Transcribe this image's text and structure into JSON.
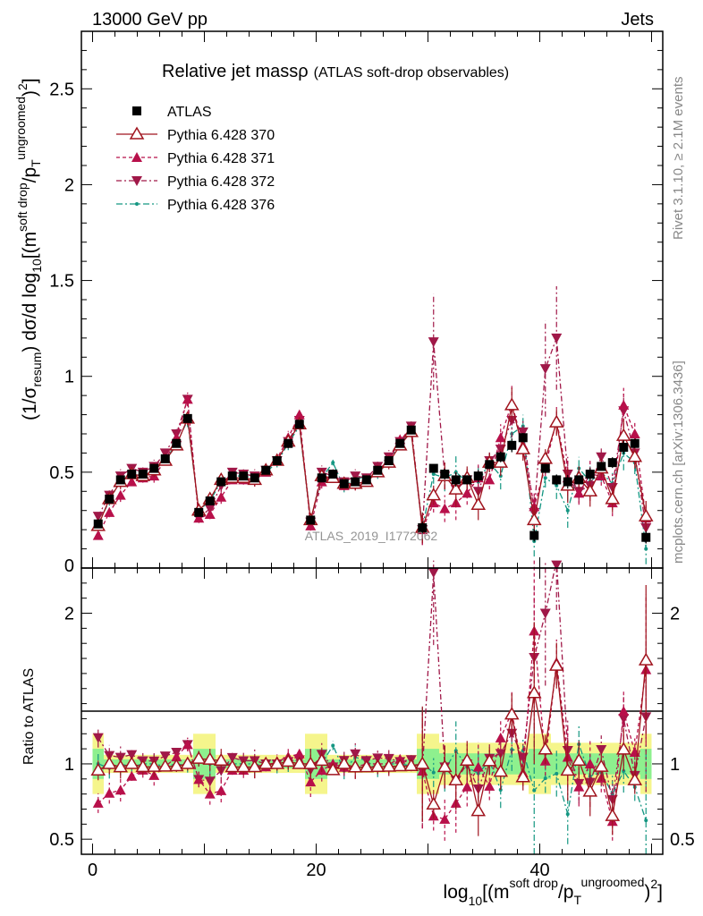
{
  "header": {
    "left": "13000 GeV pp",
    "right": "Jets"
  },
  "side_labels": {
    "rivet": "Rivet 3.1.10, ≥ 2.1M events",
    "mcplots": "mcplots.cern.ch [arXiv:1306.3436]"
  },
  "watermark": "ATLAS_2019_I1772062",
  "colors": {
    "atlas": "#000000",
    "p370": "#a0141e",
    "p371": "#b8104a",
    "p372": "#a01848",
    "p376": "#149682",
    "band_inner": "#8ef08e",
    "band_outer": "#f5f58c"
  },
  "chart_data": {
    "type": "scatter",
    "title": "Relative jet mass",
    "title_symbol": "ρ",
    "subtitle": "(ATLAS soft-drop observables)",
    "ylabel_main": "(1/σresum) dσ/d log10[(msoft drop/pTungroomed)2]",
    "ylabel_ratio": "Ratio to ATLAS",
    "xlabel": "log10[(msoft drop/pTungroomed)2]",
    "x": [
      0.5,
      1.5,
      2.5,
      3.5,
      4.5,
      5.5,
      6.5,
      7.5,
      8.5,
      9.5,
      10.5,
      11.5,
      12.5,
      13.5,
      14.5,
      15.5,
      16.5,
      17.5,
      18.5,
      19.5,
      20.5,
      21.5,
      22.5,
      23.5,
      24.5,
      25.5,
      26.5,
      27.5,
      28.5,
      29.5,
      30.5,
      31.5,
      32.5,
      33.5,
      34.5,
      35.5,
      36.5,
      37.5,
      38.5,
      39.5,
      40.5,
      41.5,
      42.5,
      43.5,
      44.5,
      45.5,
      46.5,
      47.5,
      48.5,
      49.5
    ],
    "xlim": [
      -1,
      51
    ],
    "ylim_main": [
      0,
      2.8
    ],
    "yticks_main": [
      "0.5",
      "1",
      "1.5",
      "2",
      "2.5"
    ],
    "ylim_ratio": [
      0.4,
      2.3
    ],
    "yticks_ratio": [
      "0.5",
      "1",
      "2"
    ],
    "xticks": [
      "0",
      "20",
      "40"
    ],
    "series": [
      {
        "name": "ATLAS",
        "marker": "square",
        "values": [
          0.23,
          0.36,
          0.46,
          0.49,
          0.49,
          0.52,
          0.57,
          0.65,
          0.78,
          0.29,
          0.35,
          0.45,
          0.48,
          0.48,
          0.47,
          0.51,
          0.56,
          0.65,
          0.75,
          0.25,
          0.47,
          0.49,
          0.44,
          0.45,
          0.46,
          0.51,
          0.56,
          0.65,
          0.72,
          0.21,
          0.52,
          0.49,
          0.46,
          0.46,
          0.48,
          0.54,
          0.58,
          0.64,
          0.68,
          0.17,
          0.52,
          0.46,
          0.45,
          0.46,
          0.49,
          0.53,
          0.55,
          0.63,
          0.65,
          0.16
        ]
      },
      {
        "name": "Pythia 6.428 370",
        "marker": "triangle-open",
        "values": [
          0.22,
          0.36,
          0.45,
          0.49,
          0.48,
          0.51,
          0.56,
          0.64,
          0.78,
          0.3,
          0.36,
          0.46,
          0.47,
          0.47,
          0.46,
          0.51,
          0.56,
          0.66,
          0.75,
          0.25,
          0.48,
          0.47,
          0.44,
          0.44,
          0.45,
          0.5,
          0.55,
          0.64,
          0.71,
          0.21,
          0.38,
          0.48,
          0.41,
          0.47,
          0.33,
          0.55,
          0.55,
          0.85,
          0.62,
          0.25,
          0.57,
          0.76,
          0.43,
          0.47,
          0.4,
          0.52,
          0.36,
          0.69,
          0.58,
          0.27
        ]
      },
      {
        "name": "Pythia 6.428 371",
        "marker": "triangle-up",
        "values": [
          0.17,
          0.29,
          0.38,
          0.45,
          0.47,
          0.48,
          0.56,
          0.68,
          0.88,
          0.26,
          0.28,
          0.37,
          0.46,
          0.46,
          0.46,
          0.5,
          0.57,
          0.68,
          0.8,
          0.22,
          0.45,
          0.49,
          0.43,
          0.44,
          0.46,
          0.51,
          0.56,
          0.67,
          0.72,
          0.2,
          0.34,
          0.31,
          0.34,
          0.39,
          0.47,
          0.46,
          0.68,
          0.86,
          0.64,
          0.32,
          0.53,
          0.77,
          0.47,
          0.39,
          0.49,
          0.48,
          0.34,
          0.85,
          0.7,
          0.26
        ]
      },
      {
        "name": "Pythia 6.428 372",
        "marker": "triangle-down",
        "values": [
          0.27,
          0.38,
          0.48,
          0.52,
          0.5,
          0.53,
          0.6,
          0.7,
          0.88,
          0.26,
          0.31,
          0.43,
          0.5,
          0.49,
          0.48,
          0.51,
          0.56,
          0.66,
          0.77,
          0.24,
          0.5,
          0.48,
          0.45,
          0.48,
          0.47,
          0.53,
          0.58,
          0.66,
          0.74,
          0.2,
          1.18,
          0.48,
          0.41,
          0.46,
          0.4,
          0.56,
          0.62,
          0.77,
          0.71,
          0.29,
          1.04,
          1.2,
          0.49,
          0.4,
          0.43,
          0.58,
          0.42,
          0.82,
          0.6,
          0.21
        ]
      },
      {
        "name": "Pythia 6.428 376",
        "marker": "dot",
        "values": [
          0.23,
          0.35,
          0.46,
          0.48,
          0.49,
          0.52,
          0.56,
          0.65,
          0.77,
          0.3,
          0.35,
          0.45,
          0.48,
          0.48,
          0.47,
          0.5,
          0.55,
          0.65,
          0.74,
          0.25,
          0.47,
          0.55,
          0.42,
          0.47,
          0.47,
          0.49,
          0.56,
          0.65,
          0.71,
          0.21,
          0.49,
          0.47,
          0.5,
          0.45,
          0.45,
          0.55,
          0.48,
          0.7,
          0.74,
          0.14,
          0.47,
          0.43,
          0.3,
          0.52,
          0.45,
          0.5,
          0.44,
          0.6,
          0.55,
          0.1
        ]
      }
    ],
    "legend_position": "top-left"
  }
}
